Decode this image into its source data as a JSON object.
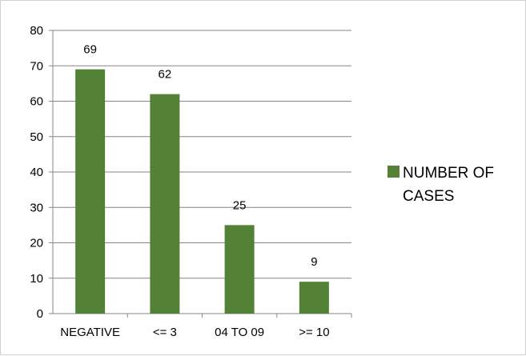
{
  "chart_data": {
    "type": "bar",
    "categories": [
      "NEGATIVE",
      "<= 3",
      "04 TO 09",
      ">= 10"
    ],
    "series": [
      {
        "name": "NUMBER OF CASES",
        "values": [
          69,
          62,
          25,
          9
        ],
        "color": "#538135"
      }
    ],
    "data_labels": [
      "69",
      "62",
      "25",
      "9"
    ],
    "yticks": [
      "0",
      "10",
      "20",
      "30",
      "40",
      "50",
      "60",
      "70",
      "80"
    ],
    "ylim": [
      0,
      80
    ],
    "grid": true,
    "legend": {
      "position": "right",
      "lines": [
        "NUMBER OF",
        "CASES"
      ]
    },
    "title": "",
    "xlabel": "",
    "ylabel": ""
  }
}
